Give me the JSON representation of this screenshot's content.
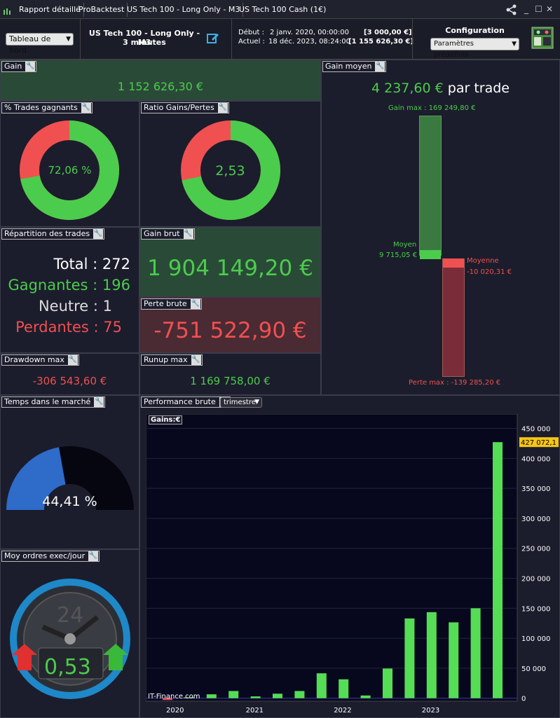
{
  "tabs": [
    "Rapport détaillé",
    "ProBacktest",
    "US Tech 100 - Long Only - M3",
    "US Tech 100 Cash (1€)"
  ],
  "header": {
    "view_select": "Tableau de bord",
    "strategy_name": "US Tech 100 - Long Only - M3",
    "timeframe": "3 minutes",
    "start_label": "Début :",
    "start_date": "2 janv. 2020, 00:00:00",
    "start_value": "[3 000,00 €]",
    "current_label": "Actuel :",
    "current_date": "18 déc. 2023, 08:24:00",
    "current_value": "[1 155 626,30 €]",
    "config_title": "Configuration",
    "config_select": "Paramètres prédéfinis"
  },
  "gain": {
    "label": "Gain",
    "value": "1 152 626,30 €"
  },
  "gain_moyen": {
    "label": "Gain moyen",
    "value": "4 237,60 €",
    "suffix": "par trade",
    "gain_max_label": "Gain max : 169 249,80 €",
    "moyen_label": "Moyen",
    "moyen_value": "9 715,05 €",
    "moyenne_label": "Moyenne",
    "moyenne_value": "-10 020,31 €",
    "perte_max_label": "Perte max : -139 285,20 €"
  },
  "pct_trades": {
    "label": "% Trades gagnants",
    "value": "72,06 %",
    "fraction": 0.7206
  },
  "ratio": {
    "label": "Ratio Gains/Pertes",
    "value": "2,53",
    "fraction": 0.7167
  },
  "repartition": {
    "label": "Répartition des trades",
    "total": "Total : 272",
    "gagnantes": "Gagnantes : 196",
    "neutre": "Neutre : 1",
    "perdantes": "Perdantes : 75"
  },
  "gain_brut": {
    "label": "Gain brut",
    "value": "1 904 149,20 €"
  },
  "perte_brute": {
    "label": "Perte brute",
    "value": "-751 522,90 €"
  },
  "drawdown": {
    "label": "Drawdown max",
    "value": "-306 543,60 €"
  },
  "runup": {
    "label": "Runup max",
    "value": "1 169 758,00 €"
  },
  "temps": {
    "label": "Temps dans le marché",
    "value": "44,41 %",
    "fraction": 0.4441
  },
  "ordres": {
    "label": "Moy ordres exec/jour",
    "value": "0,53",
    "hours": "24"
  },
  "performance": {
    "label": "Performance brute",
    "period_select": "trimestre",
    "series_label": "Gains:€",
    "last_value_tag": "427 072,1",
    "watermark": "IT-Finance.com"
  },
  "colors": {
    "green": "#4ccc4c",
    "red": "#f05050",
    "blue": "#2f6bc9",
    "bg": "#1b1d2c"
  },
  "chart_data": {
    "type": "bar",
    "title": "",
    "series_name": "Gains:€",
    "x_tick_labels": [
      "2020",
      "2021",
      "2022",
      "2023"
    ],
    "categories": [
      "2020 T1",
      "2020 T2",
      "2020 T3",
      "2020 T4",
      "2021 T1",
      "2021 T2",
      "2021 T3",
      "2021 T4",
      "2022 T1",
      "2022 T2",
      "2022 T3",
      "2022 T4",
      "2023 T1",
      "2023 T2",
      "2023 T3",
      "2023 T4"
    ],
    "values": [
      -3000,
      1500,
      6500,
      12000,
      3000,
      7500,
      12000,
      41500,
      31500,
      4500,
      49500,
      133000,
      143500,
      126500,
      150000,
      427072
    ],
    "ylim": [
      -5000,
      460000
    ],
    "yticks": [
      0,
      50000,
      100000,
      150000,
      200000,
      250000,
      300000,
      350000,
      400000,
      450000
    ],
    "ytick_labels": [
      "0",
      "50 000",
      "100 000",
      "150 000",
      "200 000",
      "250 000",
      "300 000",
      "350 000",
      "400 000",
      "450 000"
    ],
    "grid": true
  }
}
